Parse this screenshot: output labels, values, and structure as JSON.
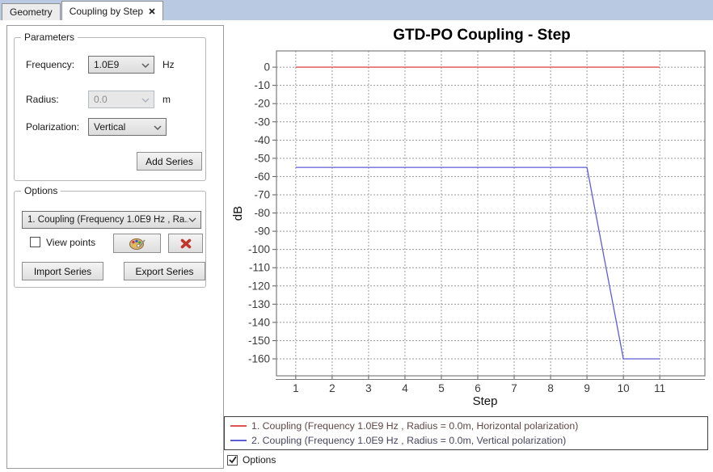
{
  "tabs": [
    {
      "label": "Geometry",
      "active": false,
      "closable": false
    },
    {
      "label": "Coupling by Step",
      "active": true,
      "closable": true
    }
  ],
  "colors": {
    "tabbar_background": "#b9c9e2"
  },
  "parameters_panel": {
    "title": "Parameters",
    "frequency_label": "Frequency:",
    "frequency_value": "1.0E9",
    "frequency_unit": "Hz",
    "radius_label": "Radius:",
    "radius_value": "0.0",
    "radius_unit": "m",
    "radius_disabled": true,
    "polarization_label": "Polarization:",
    "polarization_value": "Vertical",
    "add_series_label": "Add Series"
  },
  "options_panel": {
    "title": "Options",
    "series_select_value": "1. Coupling (Frequency 1.0E9 Hz , Ra...",
    "view_points_label": "View points",
    "view_points_checked": false,
    "color_button_icon": "palette-icon",
    "delete_button_icon": "delete-x-icon",
    "import_series_label": "Import Series",
    "export_series_label": "Export Series"
  },
  "footer": {
    "options_checkbox_label": "Options",
    "options_checkbox_checked": true
  },
  "chart_data": {
    "type": "line",
    "title": "GTD-PO Coupling - Step",
    "xlabel": "Step",
    "ylabel": "dB",
    "grid": true,
    "legend_position": "bottom",
    "x": [
      1,
      2,
      3,
      4,
      5,
      6,
      7,
      8,
      9,
      10,
      11
    ],
    "xticks": [
      1,
      2,
      3,
      4,
      5,
      6,
      7,
      8,
      9,
      10,
      11
    ],
    "yticks": [
      0,
      -10,
      -20,
      -30,
      -40,
      -50,
      -60,
      -70,
      -80,
      -90,
      -100,
      -110,
      -120,
      -130,
      -140,
      -150,
      -160
    ],
    "xlim": [
      0.47,
      12.24
    ],
    "ylim": [
      8.9,
      -169.3
    ],
    "series": [
      {
        "name": "1. Coupling (Frequency 1.0E9 Hz , Radius = 0.0m, Horizontal polarization)",
        "color": "#e05252",
        "values": [
          0,
          0,
          0,
          0,
          0,
          0,
          0,
          0,
          0,
          0,
          0
        ]
      },
      {
        "name": "2. Coupling (Frequency 1.0E9 Hz , Radius = 0.0m, Vertical polarization)",
        "color": "#5c5cd6",
        "values": [
          -55,
          -55,
          -55,
          -55,
          -55,
          -55,
          -55,
          -55,
          -55,
          -160,
          -160
        ]
      }
    ]
  }
}
